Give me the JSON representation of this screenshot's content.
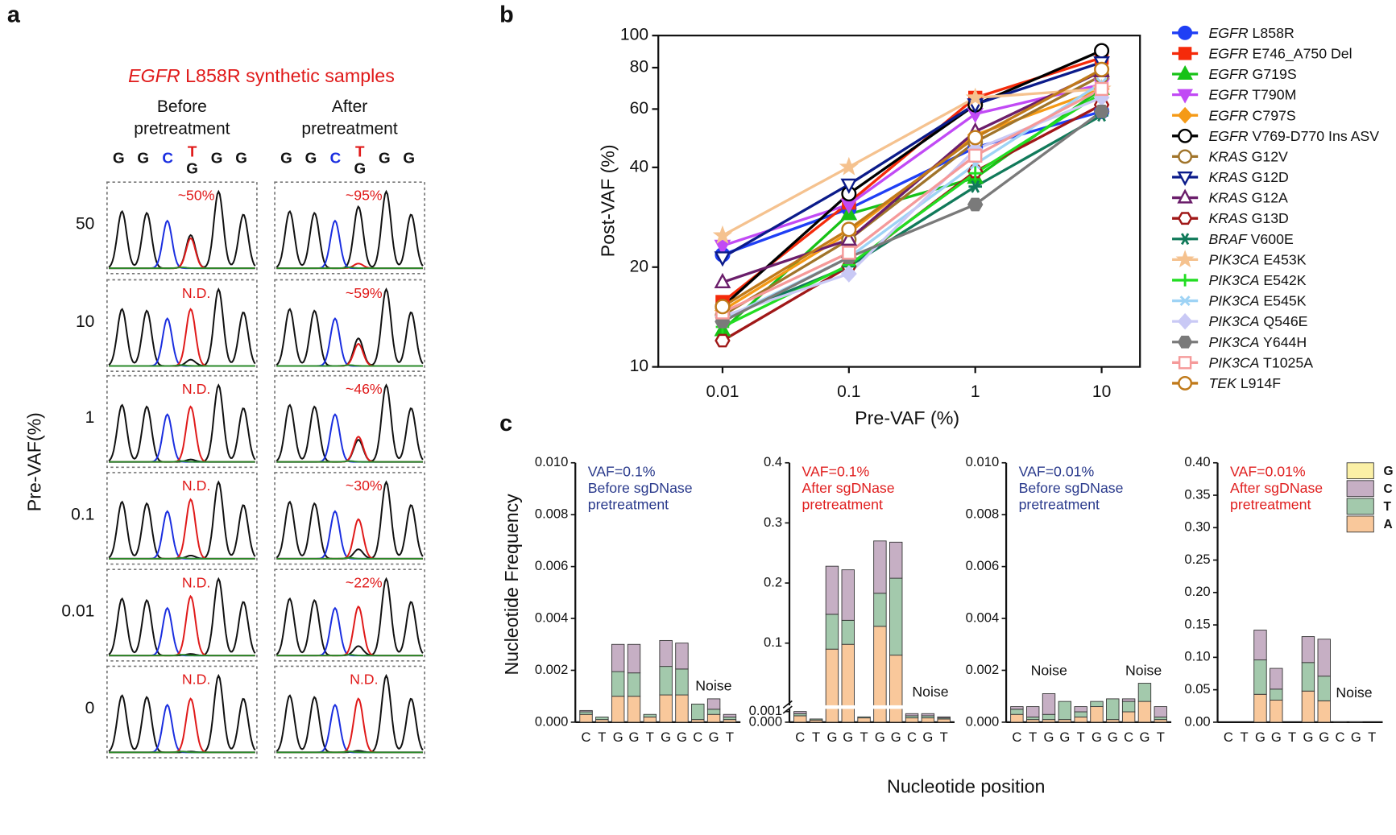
{
  "panel_labels": [
    "a",
    "b",
    "c"
  ],
  "panel_a": {
    "title": "EGFR L858R synthetic samples",
    "ylabel": "Pre-VAF(%)",
    "rows": [
      "50",
      "10",
      "1",
      "0.1",
      "0.01",
      "0"
    ],
    "columns": [
      {
        "header": [
          "Before",
          "pretreatment"
        ],
        "sequence": [
          "G",
          "G",
          "C",
          "T",
          "G",
          "G"
        ],
        "alt": "G",
        "calls": [
          "~50%",
          "N.D.",
          "N.D.",
          "N.D.",
          "N.D.",
          "N.D."
        ]
      },
      {
        "header": [
          "After",
          "pretreatment"
        ],
        "sequence": [
          "G",
          "G",
          "C",
          "T",
          "G",
          "G"
        ],
        "alt": "G",
        "calls": [
          "~95%",
          "~59%",
          "~46%",
          "~30%",
          "~22%",
          "N.D."
        ]
      }
    ]
  },
  "panel_c": {
    "xlabel": "Nucleotide position",
    "ylabel": "Nucleotide Frequency"
  },
  "chart_data": [
    {
      "type": "line",
      "xlabel": "Pre-VAF (%)",
      "ylabel": "Post-VAF (%)",
      "log_y": true,
      "categories": [
        "0.01",
        "0.1",
        "1",
        "10"
      ],
      "ylim": [
        10,
        100
      ],
      "yticks": [
        10,
        20,
        40,
        60,
        80,
        100
      ],
      "legend": "right",
      "series": [
        {
          "name": "EGFR L858R",
          "color": "#1f3ff5",
          "marker": "circle",
          "filled": true,
          "values": [
            21.8,
            30,
            45.9,
            59
          ]
        },
        {
          "name": "EGFR E746_A750 Del",
          "color": "#f52a0a",
          "marker": "square",
          "filled": true,
          "values": [
            15.7,
            31.3,
            64.9,
            85.7
          ]
        },
        {
          "name": "EGFR G719S",
          "color": "#17c217",
          "marker": "triangle",
          "filled": true,
          "values": [
            12.9,
            28.9,
            37.2,
            69
          ]
        },
        {
          "name": "EGFR T790M",
          "color": "#c14af5",
          "marker": "triangle-down",
          "filled": true,
          "values": [
            23.2,
            30.9,
            58,
            71.2
          ]
        },
        {
          "name": "EGFR C797S",
          "color": "#f59a16",
          "marker": "diamond",
          "filled": true,
          "values": [
            14.8,
            25.4,
            50.1,
            69
          ]
        },
        {
          "name": "EGFR V769-D770 Ins ASV",
          "color": "#000000",
          "marker": "circle",
          "filled": false,
          "values": [
            15.2,
            33.3,
            61.8,
            90
          ]
        },
        {
          "name": "KRAS G12V",
          "color": "#a0742a",
          "marker": "circle",
          "filled": false,
          "values": [
            14.3,
            24.2,
            47.7,
            75.7
          ]
        },
        {
          "name": "KRAS G12D",
          "color": "#0b1b8a",
          "marker": "triangle-down",
          "filled": false,
          "values": [
            21.4,
            35.5,
            62,
            83
          ]
        },
        {
          "name": "KRAS G12A",
          "color": "#6b1e6b",
          "marker": "triangle",
          "filled": false,
          "values": [
            18,
            24.2,
            51.3,
            78
          ]
        },
        {
          "name": "KRAS G13D",
          "color": "#a01818",
          "marker": "hexagon",
          "filled": false,
          "values": [
            12,
            20.1,
            38.9,
            61.8
          ]
        },
        {
          "name": "BRAF V600E",
          "color": "#117a5a",
          "marker": "asterisk",
          "filled": true,
          "values": [
            14,
            20.1,
            35,
            57.4
          ]
        },
        {
          "name": "PIK3CA E453K",
          "color": "#f5c28f",
          "marker": "star",
          "filled": true,
          "values": [
            24.9,
            40.1,
            64.9,
            69
          ]
        },
        {
          "name": "PIK3CA E542K",
          "color": "#22dd22",
          "marker": "plus",
          "filled": true,
          "values": [
            13.2,
            20.3,
            38.4,
            67
          ]
        },
        {
          "name": "PIK3CA E545K",
          "color": "#9ed3f5",
          "marker": "cross",
          "filled": true,
          "values": [
            13.9,
            21.4,
            40.9,
            72
          ]
        },
        {
          "name": "PIK3CA Q546E",
          "color": "#c9c9f5",
          "marker": "diamond",
          "filled": true,
          "values": [
            14.2,
            19.1,
            45.3,
            65
          ]
        },
        {
          "name": "PIK3CA Y644H",
          "color": "#7a7a7a",
          "marker": "hexagon",
          "filled": true,
          "values": [
            13.7,
            21.4,
            30.9,
            59
          ]
        },
        {
          "name": "PIK3CA T1025A",
          "color": "#f59a9a",
          "marker": "square",
          "filled": false,
          "values": [
            14.6,
            22.1,
            43.4,
            69
          ]
        },
        {
          "name": "TEK L914F",
          "color": "#c07a1a",
          "marker": "circle",
          "filled": false,
          "values": [
            15.2,
            26,
            49.2,
            79
          ]
        }
      ]
    },
    {
      "type": "stacked-bar",
      "annotation": [
        "VAF=0.1%",
        "Before sgDNase",
        "pretreatment"
      ],
      "annotation_color": "#2a3a8c",
      "notes": [
        "Noise"
      ],
      "categories": [
        "C",
        "T",
        "G",
        "G",
        "T",
        "G",
        "G",
        "C",
        "G",
        "T"
      ],
      "ylim": [
        0,
        0.01
      ],
      "yticks": [
        {
          "value": 0,
          "label": "0.000"
        },
        0.002,
        0.004,
        0.006,
        0.008,
        {
          "value": 0.01,
          "label": "0.010"
        }
      ],
      "series": [
        {
          "name": "A",
          "color": "#f9c89b",
          "values": [
            0.0003,
            0.0001,
            0.001,
            0.001,
            0.0002,
            0.00105,
            0.00105,
            0.0001,
            0.0003,
            0.0001
          ]
        },
        {
          "name": "T",
          "color": "#a3c9ac",
          "values": [
            0.0001,
            0.0001,
            0.00095,
            0.0009,
            0.0001,
            0.0011,
            0.001,
            0.0006,
            0.0002,
            0.0001
          ]
        },
        {
          "name": "C",
          "color": "#c6afc4",
          "values": [
            5e-05,
            0,
            0.00105,
            0.0011,
            0,
            0.001,
            0.001,
            0,
            0.0004,
            0.0001
          ]
        },
        {
          "name": "G",
          "color": "#fbf0a6",
          "values": [
            0,
            0,
            0,
            0,
            0,
            0,
            0,
            0,
            0,
            0
          ]
        }
      ]
    },
    {
      "type": "stacked-bar",
      "annotation": [
        "VAF=0.1%",
        "After sgDNase",
        "pretreatment"
      ],
      "annotation_color": "#e02020",
      "notes": [
        "Noise"
      ],
      "categories": [
        "C",
        "T",
        "G",
        "G",
        "T",
        "G",
        "G",
        "C",
        "G",
        "T"
      ],
      "ylim": [
        0,
        0.4
      ],
      "ybreak": 0.001,
      "yticks": [
        {
          "value": 0,
          "label": "0.000"
        },
        0.001,
        0.1,
        0.2,
        0.3,
        0.4
      ],
      "series": [
        {
          "name": "A",
          "color": "#f9c89b",
          "values": [
            0.0006,
            0.0002,
            0.09,
            0.098,
            0.0004,
            0.128,
            0.08,
            0.0004,
            0.0004,
            0.0003
          ]
        },
        {
          "name": "T",
          "color": "#a3c9ac",
          "values": [
            0.0002,
            0.0001,
            0.058,
            0.04,
            0.0001,
            0.055,
            0.128,
            0.0002,
            0.0002,
            0.0001
          ]
        },
        {
          "name": "C",
          "color": "#c6afc4",
          "values": [
            0.0002,
            0,
            0.08,
            0.084,
            0,
            0.087,
            0.06,
            0.0002,
            0.0002,
            0.0001
          ]
        },
        {
          "name": "G",
          "color": "#fbf0a6",
          "values": [
            0,
            0,
            0,
            0,
            0,
            0,
            0,
            0,
            0,
            0
          ]
        }
      ]
    },
    {
      "type": "stacked-bar",
      "annotation": [
        "VAF=0.01%",
        "Before sgDNase",
        "pretreatment"
      ],
      "annotation_color": "#2a3a8c",
      "notes": [
        "Noise",
        "Noise"
      ],
      "categories": [
        "C",
        "T",
        "G",
        "G",
        "T",
        "G",
        "G",
        "C",
        "G",
        "T"
      ],
      "ylim": [
        0,
        0.01
      ],
      "yticks": [
        {
          "value": 0,
          "label": "0.000"
        },
        0.002,
        0.004,
        0.006,
        0.008,
        {
          "value": 0.01,
          "label": "0.010"
        }
      ],
      "series": [
        {
          "name": "A",
          "color": "#f9c89b",
          "values": [
            0.0003,
            0.0001,
            0.0001,
            0.0001,
            0.0002,
            0.0006,
            0.0001,
            0.0004,
            0.0008,
            0.0001
          ]
        },
        {
          "name": "T",
          "color": "#a3c9ac",
          "values": [
            0.0002,
            0.0001,
            0.0002,
            0.0007,
            0.0002,
            0.0002,
            0.0008,
            0.0004,
            0.0007,
            0.0001
          ]
        },
        {
          "name": "C",
          "color": "#c6afc4",
          "values": [
            0.0001,
            0.0004,
            0.0008,
            0,
            0.0002,
            0,
            0,
            0.0001,
            0,
            0.0004
          ]
        },
        {
          "name": "G",
          "color": "#fbf0a6",
          "values": [
            0,
            0,
            0,
            0,
            0,
            0,
            0,
            0,
            0,
            0
          ]
        }
      ]
    },
    {
      "type": "stacked-bar",
      "annotation": [
        "VAF=0.01%",
        "After sgDNase",
        "pretreatment"
      ],
      "annotation_color": "#e02020",
      "notes": [
        "Noise"
      ],
      "legend": "upper right",
      "categories": [
        "C",
        "T",
        "G",
        "G",
        "T",
        "G",
        "G",
        "C",
        "G",
        "T"
      ],
      "ylim": [
        0,
        0.4
      ],
      "yticks": [
        {
          "value": 0,
          "label": "0.00"
        },
        0.05,
        {
          "value": 0.1,
          "label": "0.10"
        },
        0.15,
        {
          "value": 0.2,
          "label": "0.20"
        },
        0.25,
        {
          "value": 0.3,
          "label": "0.30"
        },
        0.35,
        {
          "value": 0.4,
          "label": "0.40"
        }
      ],
      "series": [
        {
          "name": "A",
          "color": "#f9c89b",
          "values": [
            0,
            0,
            0.043,
            0.034,
            0,
            0.048,
            0.033,
            0.0005,
            0.0005,
            0
          ]
        },
        {
          "name": "T",
          "color": "#a3c9ac",
          "values": [
            0,
            0,
            0.053,
            0.017,
            0,
            0.044,
            0.038,
            0,
            0,
            0
          ]
        },
        {
          "name": "C",
          "color": "#c6afc4",
          "values": [
            0,
            0,
            0.046,
            0.032,
            0,
            0.04,
            0.057,
            0,
            0,
            0
          ]
        },
        {
          "name": "G",
          "color": "#fbf0a6",
          "values": [
            0,
            0,
            0,
            0,
            0,
            0,
            0,
            0,
            0,
            0
          ]
        }
      ]
    }
  ]
}
